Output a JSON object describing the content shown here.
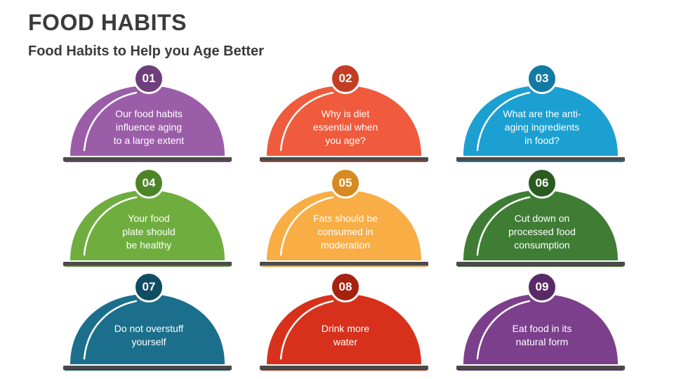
{
  "header": {
    "title": "FOOD HABITS",
    "subtitle": "Food Habits to Help you Age Better"
  },
  "items": [
    {
      "number": "01",
      "text": "Our food habits\ninfluence aging\nto a large extent",
      "color": "#9b5da8",
      "dark": "#6f3f7c"
    },
    {
      "number": "02",
      "text": "Why is diet\nessential when\nyou age?",
      "color": "#ef5b3c",
      "dark": "#c23d24"
    },
    {
      "number": "03",
      "text": "What are the anti-\naging ingredients\nin food?",
      "color": "#1ba0d1",
      "dark": "#147aa2"
    },
    {
      "number": "04",
      "text": "Your food\nplate should\nbe healthy",
      "color": "#6fae3e",
      "dark": "#4e8428"
    },
    {
      "number": "05",
      "text": "Fats should be\nconsumed in\nmoderation",
      "color": "#f8ad45",
      "dark": "#d68a1f"
    },
    {
      "number": "06",
      "text": "Cut down on\nprocessed food\nconsumption",
      "color": "#3f7d35",
      "dark": "#2a5c22"
    },
    {
      "number": "07",
      "text": "Do not overstuff\nyourself",
      "color": "#1c6f8c",
      "dark": "#0f4d63"
    },
    {
      "number": "08",
      "text": "Drink more\nwater",
      "color": "#d7311b",
      "dark": "#a52210"
    },
    {
      "number": "09",
      "text": "Eat food in its\nnatural form",
      "color": "#7b3f8c",
      "dark": "#5a2a68"
    }
  ]
}
